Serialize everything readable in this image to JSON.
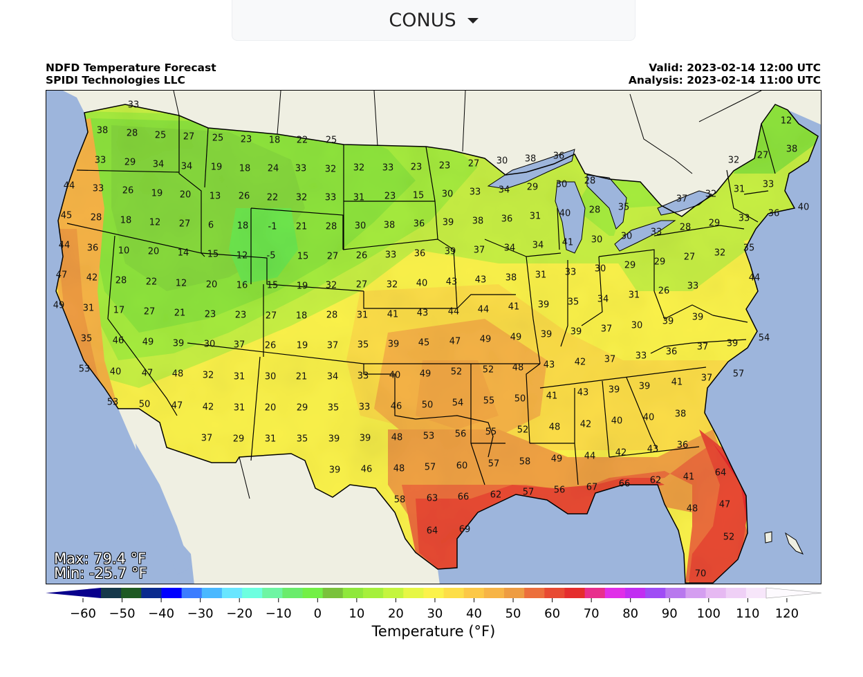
{
  "region_selector": {
    "value": "CONUS"
  },
  "header": {
    "title": "NDFD Temperature Forecast",
    "org": "SPIDI Technologies LLC",
    "valid": "Valid: 2023-02-14 12:00 UTC",
    "analysis": "Analysis: 2023-02-14 11:00 UTC"
  },
  "stats": {
    "max": "Max: 79.4 °F",
    "min": "Min: -25.7 °F"
  },
  "colorbar": {
    "title": "Temperature (°F)",
    "ticks": [
      "−60",
      "−50",
      "−40",
      "−30",
      "−20",
      "−10",
      "0",
      "10",
      "20",
      "30",
      "40",
      "50",
      "60",
      "70",
      "80",
      "90",
      "100",
      "110",
      "120"
    ],
    "colors": [
      "#08008c",
      "#15384a",
      "#1e5a24",
      "#0a2b8e",
      "#0000ff",
      "#3b7cff",
      "#4ab8ff",
      "#69e6ff",
      "#6dffe0",
      "#6ef5a3",
      "#6aec6c",
      "#73f046",
      "#7ac23c",
      "#8fe83c",
      "#a5f03c",
      "#c4f53e",
      "#e6f745",
      "#fbf24a",
      "#fdde48",
      "#fcc846",
      "#f7b446",
      "#ee9c42",
      "#ec6f3c",
      "#e84a32",
      "#e52d2d",
      "#e82e8c",
      "#e02ee8",
      "#c12ef2",
      "#9f4cf5",
      "#b878ee",
      "#d49ef0",
      "#e6b9f2",
      "#efd0f6",
      "#f7e6fa",
      "#fdfafe"
    ]
  },
  "map": {
    "colors": {
      "ocean": "#9db5dc",
      "land_other": "#efefe2",
      "border": "#000000"
    },
    "labels": [
      [
        "33",
        192,
        151
      ],
      [
        "38",
        147,
        188
      ],
      [
        "28",
        190,
        192
      ],
      [
        "25",
        231,
        195
      ],
      [
        "27",
        272,
        197
      ],
      [
        "25",
        314,
        199
      ],
      [
        "23",
        355,
        201
      ],
      [
        "18",
        396,
        202
      ],
      [
        "22",
        436,
        202
      ],
      [
        "25",
        478,
        202
      ],
      [
        "33",
        144,
        231
      ],
      [
        "29",
        187,
        234
      ],
      [
        "34",
        228,
        237
      ],
      [
        "34",
        269,
        240
      ],
      [
        "19",
        312,
        241
      ],
      [
        "18",
        353,
        243
      ],
      [
        "24",
        394,
        243
      ],
      [
        "33",
        434,
        243
      ],
      [
        "32",
        477,
        244
      ],
      [
        "32",
        518,
        242
      ],
      [
        "33",
        560,
        242
      ],
      [
        "23",
        601,
        241
      ],
      [
        "23",
        642,
        239
      ],
      [
        "27",
        684,
        236
      ],
      [
        "30",
        725,
        232
      ],
      [
        "38",
        766,
        229
      ],
      [
        "36",
        807,
        225
      ],
      [
        "12",
        1136,
        174
      ],
      [
        "27",
        1102,
        224
      ],
      [
        "38",
        1144,
        215
      ],
      [
        "32",
        1060,
        231
      ],
      [
        "44",
        99,
        268
      ],
      [
        "33",
        141,
        272
      ],
      [
        "26",
        184,
        275
      ],
      [
        "19",
        226,
        279
      ],
      [
        "20",
        267,
        281
      ],
      [
        "13",
        310,
        283
      ],
      [
        "26",
        352,
        283
      ],
      [
        "22",
        393,
        285
      ],
      [
        "32",
        435,
        285
      ],
      [
        "33",
        477,
        285
      ],
      [
        "31",
        518,
        285
      ],
      [
        "23",
        563,
        283
      ],
      [
        "15",
        604,
        282
      ],
      [
        "30",
        646,
        280
      ],
      [
        "33",
        686,
        277
      ],
      [
        "34",
        728,
        274
      ],
      [
        "29",
        769,
        270
      ],
      [
        "30",
        811,
        266
      ],
      [
        "28",
        852,
        261
      ],
      [
        "32",
        1027,
        280
      ],
      [
        "31",
        1068,
        273
      ],
      [
        "33",
        1110,
        266
      ],
      [
        "40",
        1161,
        299
      ],
      [
        "37",
        985,
        287
      ],
      [
        "33",
        1075,
        315
      ],
      [
        "45",
        95,
        311
      ],
      [
        "28",
        138,
        314
      ],
      [
        "18",
        181,
        318
      ],
      [
        "12",
        223,
        321
      ],
      [
        "27",
        266,
        323
      ],
      [
        "6",
        304,
        325
      ],
      [
        "18",
        350,
        326
      ],
      [
        "-1",
        393,
        327
      ],
      [
        "21",
        435,
        327
      ],
      [
        "28",
        478,
        327
      ],
      [
        "30",
        520,
        326
      ],
      [
        "38",
        562,
        325
      ],
      [
        "36",
        605,
        323
      ],
      [
        "39",
        647,
        321
      ],
      [
        "38",
        690,
        319
      ],
      [
        "36",
        732,
        316
      ],
      [
        "31",
        773,
        312
      ],
      [
        "40",
        816,
        308
      ],
      [
        "28",
        859,
        303
      ],
      [
        "35",
        901,
        299
      ],
      [
        "28",
        990,
        328
      ],
      [
        "29",
        1032,
        322
      ],
      [
        "36",
        1118,
        308
      ],
      [
        "44",
        92,
        354
      ],
      [
        "36",
        133,
        358
      ],
      [
        "10",
        178,
        362
      ],
      [
        "20",
        221,
        363
      ],
      [
        "14",
        264,
        365
      ],
      [
        "15",
        307,
        367
      ],
      [
        "12",
        349,
        369
      ],
      [
        "-5",
        391,
        369
      ],
      [
        "15",
        437,
        370
      ],
      [
        "27",
        480,
        370
      ],
      [
        "26",
        522,
        369
      ],
      [
        "33",
        564,
        368
      ],
      [
        "36",
        606,
        366
      ],
      [
        "39",
        650,
        363
      ],
      [
        "37",
        692,
        361
      ],
      [
        "34",
        736,
        358
      ],
      [
        "34",
        777,
        354
      ],
      [
        "41",
        820,
        350
      ],
      [
        "30",
        862,
        346
      ],
      [
        "30",
        905,
        341
      ],
      [
        "33",
        948,
        335
      ],
      [
        "27",
        996,
        371
      ],
      [
        "32",
        1040,
        365
      ],
      [
        "35",
        1082,
        358
      ],
      [
        "47",
        88,
        397
      ],
      [
        "42",
        132,
        401
      ],
      [
        "28",
        174,
        405
      ],
      [
        "22",
        218,
        407
      ],
      [
        "12",
        261,
        409
      ],
      [
        "20",
        305,
        411
      ],
      [
        "16",
        349,
        412
      ],
      [
        "15",
        393,
        412
      ],
      [
        "19",
        436,
        413
      ],
      [
        "32",
        478,
        412
      ],
      [
        "27",
        522,
        411
      ],
      [
        "32",
        566,
        411
      ],
      [
        "40",
        609,
        409
      ],
      [
        "43",
        652,
        407
      ],
      [
        "43",
        694,
        404
      ],
      [
        "38",
        738,
        401
      ],
      [
        "31",
        781,
        397
      ],
      [
        "33",
        824,
        393
      ],
      [
        "30",
        867,
        388
      ],
      [
        "29",
        910,
        383
      ],
      [
        "29",
        953,
        378
      ],
      [
        "44",
        1090,
        401
      ],
      [
        "33",
        1001,
        413
      ],
      [
        "49",
        84,
        441
      ],
      [
        "31",
        127,
        445
      ],
      [
        "17",
        171,
        448
      ],
      [
        "27",
        215,
        450
      ],
      [
        "21",
        259,
        452
      ],
      [
        "23",
        303,
        454
      ],
      [
        "23",
        347,
        455
      ],
      [
        "27",
        391,
        456
      ],
      [
        "18",
        435,
        456
      ],
      [
        "28",
        479,
        455
      ],
      [
        "31",
        523,
        455
      ],
      [
        "41",
        567,
        454
      ],
      [
        "43",
        610,
        452
      ],
      [
        "44",
        655,
        450
      ],
      [
        "44",
        698,
        447
      ],
      [
        "41",
        742,
        443
      ],
      [
        "39",
        785,
        440
      ],
      [
        "35",
        828,
        436
      ],
      [
        "34",
        871,
        432
      ],
      [
        "31",
        916,
        426
      ],
      [
        "26",
        959,
        420
      ],
      [
        "39",
        1008,
        458
      ],
      [
        "35",
        124,
        489
      ],
      [
        "46",
        170,
        492
      ],
      [
        "49",
        213,
        494
      ],
      [
        "39",
        257,
        496
      ],
      [
        "30",
        302,
        497
      ],
      [
        "37",
        345,
        498
      ],
      [
        "26",
        390,
        499
      ],
      [
        "19",
        436,
        499
      ],
      [
        "37",
        480,
        499
      ],
      [
        "35",
        524,
        498
      ],
      [
        "39",
        568,
        497
      ],
      [
        "45",
        612,
        495
      ],
      [
        "47",
        657,
        493
      ],
      [
        "49",
        701,
        490
      ],
      [
        "49",
        745,
        487
      ],
      [
        "39",
        789,
        483
      ],
      [
        "39",
        832,
        479
      ],
      [
        "37",
        876,
        475
      ],
      [
        "30",
        920,
        470
      ],
      [
        "39",
        965,
        464
      ],
      [
        "37",
        1015,
        501
      ],
      [
        "39",
        1058,
        496
      ],
      [
        "54",
        1104,
        488
      ],
      [
        "53",
        121,
        533
      ],
      [
        "40",
        166,
        537
      ],
      [
        "47",
        212,
        539
      ],
      [
        "48",
        256,
        540
      ],
      [
        "32",
        300,
        542
      ],
      [
        "31",
        345,
        544
      ],
      [
        "30",
        390,
        544
      ],
      [
        "21",
        435,
        544
      ],
      [
        "34",
        480,
        544
      ],
      [
        "33",
        524,
        543
      ],
      [
        "40",
        570,
        542
      ],
      [
        "49",
        614,
        540
      ],
      [
        "52",
        659,
        537
      ],
      [
        "52",
        705,
        534
      ],
      [
        "48",
        748,
        531
      ],
      [
        "43",
        793,
        527
      ],
      [
        "42",
        838,
        523
      ],
      [
        "37",
        881,
        519
      ],
      [
        "33",
        926,
        514
      ],
      [
        "36",
        970,
        508
      ],
      [
        "41",
        978,
        552
      ],
      [
        "37",
        1021,
        546
      ],
      [
        "57",
        1067,
        540
      ],
      [
        "53",
        162,
        581
      ],
      [
        "50",
        208,
        584
      ],
      [
        "47",
        255,
        586
      ],
      [
        "42",
        300,
        588
      ],
      [
        "31",
        345,
        589
      ],
      [
        "20",
        390,
        589
      ],
      [
        "29",
        436,
        589
      ],
      [
        "35",
        481,
        589
      ],
      [
        "33",
        526,
        588
      ],
      [
        "46",
        572,
        587
      ],
      [
        "50",
        617,
        585
      ],
      [
        "54",
        661,
        582
      ],
      [
        "55",
        706,
        579
      ],
      [
        "50",
        751,
        576
      ],
      [
        "41",
        797,
        572
      ],
      [
        "43",
        842,
        567
      ],
      [
        "39",
        887,
        563
      ],
      [
        "39",
        931,
        558
      ],
      [
        "40",
        937,
        603
      ],
      [
        "38",
        983,
        598
      ],
      [
        "37",
        298,
        633
      ],
      [
        "29",
        344,
        634
      ],
      [
        "31",
        390,
        634
      ],
      [
        "35",
        436,
        634
      ],
      [
        "39",
        482,
        634
      ],
      [
        "39",
        527,
        633
      ],
      [
        "48",
        573,
        632
      ],
      [
        "53",
        619,
        630
      ],
      [
        "56",
        665,
        627
      ],
      [
        "55",
        709,
        624
      ],
      [
        "52",
        755,
        621
      ],
      [
        "48",
        801,
        617
      ],
      [
        "42",
        846,
        613
      ],
      [
        "40",
        891,
        608
      ],
      [
        "43",
        943,
        649
      ],
      [
        "36",
        986,
        643
      ],
      [
        "39",
        483,
        679
      ],
      [
        "46",
        529,
        678
      ],
      [
        "48",
        576,
        677
      ],
      [
        "57",
        621,
        675
      ],
      [
        "60",
        667,
        673
      ],
      [
        "57",
        713,
        670
      ],
      [
        "58",
        758,
        667
      ],
      [
        "49",
        804,
        663
      ],
      [
        "44",
        852,
        659
      ],
      [
        "42",
        897,
        654
      ],
      [
        "41",
        995,
        689
      ],
      [
        "64",
        1041,
        683
      ],
      [
        "58",
        577,
        722
      ],
      [
        "63",
        624,
        720
      ],
      [
        "66",
        669,
        718
      ],
      [
        "62",
        716,
        715
      ],
      [
        "57",
        763,
        711
      ],
      [
        "56",
        808,
        708
      ],
      [
        "67",
        855,
        704
      ],
      [
        "66",
        902,
        699
      ],
      [
        "62",
        947,
        694
      ],
      [
        "48",
        1000,
        735
      ],
      [
        "47",
        1047,
        729
      ],
      [
        "64",
        624,
        767
      ],
      [
        "69",
        671,
        765
      ],
      [
        "52",
        1053,
        776
      ],
      [
        "70",
        1012,
        829
      ]
    ]
  }
}
